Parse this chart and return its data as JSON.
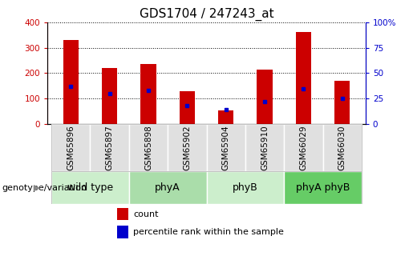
{
  "title": "GDS1704 / 247243_at",
  "samples": [
    "GSM65896",
    "GSM65897",
    "GSM65898",
    "GSM65902",
    "GSM65904",
    "GSM65910",
    "GSM66029",
    "GSM66030"
  ],
  "counts": [
    330,
    220,
    237,
    130,
    55,
    215,
    360,
    170
  ],
  "percentiles": [
    37,
    30,
    33,
    18,
    14,
    22,
    35,
    25
  ],
  "groups": [
    {
      "label": "wild type",
      "start": 0,
      "end": 2,
      "color": "#cceecc"
    },
    {
      "label": "phyA",
      "start": 2,
      "end": 4,
      "color": "#aaddaa"
    },
    {
      "label": "phyB",
      "start": 4,
      "end": 6,
      "color": "#cceecc"
    },
    {
      "label": "phyA phyB",
      "start": 6,
      "end": 8,
      "color": "#66cc66"
    }
  ],
  "bar_color": "#cc0000",
  "marker_color": "#0000cc",
  "left_axis_color": "#cc0000",
  "right_axis_color": "#0000cc",
  "ylim_left": [
    0,
    400
  ],
  "ylim_right": [
    0,
    100
  ],
  "yticks_left": [
    0,
    100,
    200,
    300,
    400
  ],
  "yticks_right": [
    0,
    25,
    50,
    75,
    100
  ],
  "yticklabels_right": [
    "0",
    "25",
    "50",
    "75",
    "100%"
  ],
  "bar_width": 0.4,
  "title_fontsize": 11,
  "tick_fontsize": 7.5,
  "label_fontsize": 8,
  "group_label_fontsize": 9,
  "legend_label_count": "count",
  "legend_label_percentile": "percentile rank within the sample",
  "genotype_label": "genotype/variation",
  "sample_box_color": "#e0e0e0",
  "group_box_border": "#888888"
}
